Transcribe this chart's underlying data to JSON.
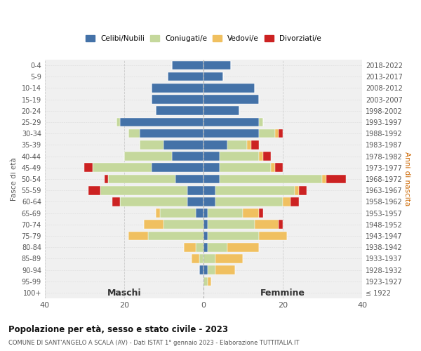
{
  "age_groups": [
    "0-4",
    "5-9",
    "10-14",
    "15-19",
    "20-24",
    "25-29",
    "30-34",
    "35-39",
    "40-44",
    "45-49",
    "50-54",
    "55-59",
    "60-64",
    "65-69",
    "70-74",
    "75-79",
    "80-84",
    "85-89",
    "90-94",
    "95-99",
    "100+"
  ],
  "birth_years": [
    "2018-2022",
    "2013-2017",
    "2008-2012",
    "2003-2007",
    "1998-2002",
    "1993-1997",
    "1988-1992",
    "1983-1987",
    "1978-1982",
    "1973-1977",
    "1968-1972",
    "1963-1967",
    "1958-1962",
    "1953-1957",
    "1948-1952",
    "1943-1947",
    "1938-1942",
    "1933-1937",
    "1928-1932",
    "1923-1927",
    "≤ 1922"
  ],
  "males": {
    "celibi": [
      8,
      9,
      13,
      13,
      12,
      21,
      16,
      10,
      8,
      13,
      7,
      4,
      4,
      2,
      0,
      0,
      0,
      0,
      1,
      0,
      0
    ],
    "coniugati": [
      0,
      0,
      0,
      0,
      0,
      1,
      3,
      6,
      12,
      15,
      17,
      22,
      17,
      9,
      10,
      14,
      2,
      1,
      0,
      0,
      0
    ],
    "vedovi": [
      0,
      0,
      0,
      0,
      0,
      0,
      0,
      0,
      0,
      0,
      0,
      0,
      0,
      1,
      5,
      5,
      3,
      2,
      0,
      0,
      0
    ],
    "divorziati": [
      0,
      0,
      0,
      0,
      0,
      0,
      0,
      0,
      0,
      2,
      1,
      3,
      2,
      0,
      0,
      0,
      0,
      0,
      0,
      0,
      0
    ]
  },
  "females": {
    "nubili": [
      7,
      5,
      13,
      14,
      9,
      14,
      14,
      6,
      4,
      4,
      4,
      3,
      3,
      1,
      1,
      1,
      1,
      0,
      1,
      0,
      0
    ],
    "coniugate": [
      0,
      0,
      0,
      0,
      0,
      1,
      4,
      5,
      10,
      13,
      26,
      20,
      17,
      9,
      12,
      13,
      5,
      3,
      2,
      1,
      0
    ],
    "vedove": [
      0,
      0,
      0,
      0,
      0,
      0,
      1,
      1,
      1,
      1,
      1,
      1,
      2,
      4,
      6,
      7,
      8,
      7,
      5,
      1,
      0
    ],
    "divorziate": [
      0,
      0,
      0,
      0,
      0,
      0,
      1,
      2,
      2,
      2,
      5,
      2,
      2,
      1,
      1,
      0,
      0,
      0,
      0,
      0,
      0
    ]
  },
  "colors": {
    "celibi": "#4472a8",
    "coniugati": "#c5d89c",
    "vedovi": "#f0c060",
    "divorziati": "#cc2222"
  },
  "xlim": 40,
  "title": "Popolazione per età, sesso e stato civile - 2023",
  "subtitle": "COMUNE DI SANT'ANGELO A SCALA (AV) - Dati ISTAT 1° gennaio 2023 - Elaborazione TUTTITALIA.IT",
  "ylabel_left": "Fasce di età",
  "ylabel_right": "Anni di nascita",
  "xlabel_left": "Maschi",
  "xlabel_right": "Femmine",
  "legend_labels": [
    "Celibi/Nubili",
    "Coniugati/e",
    "Vedovi/e",
    "Divorziati/e"
  ],
  "background_color": "#ffffff"
}
